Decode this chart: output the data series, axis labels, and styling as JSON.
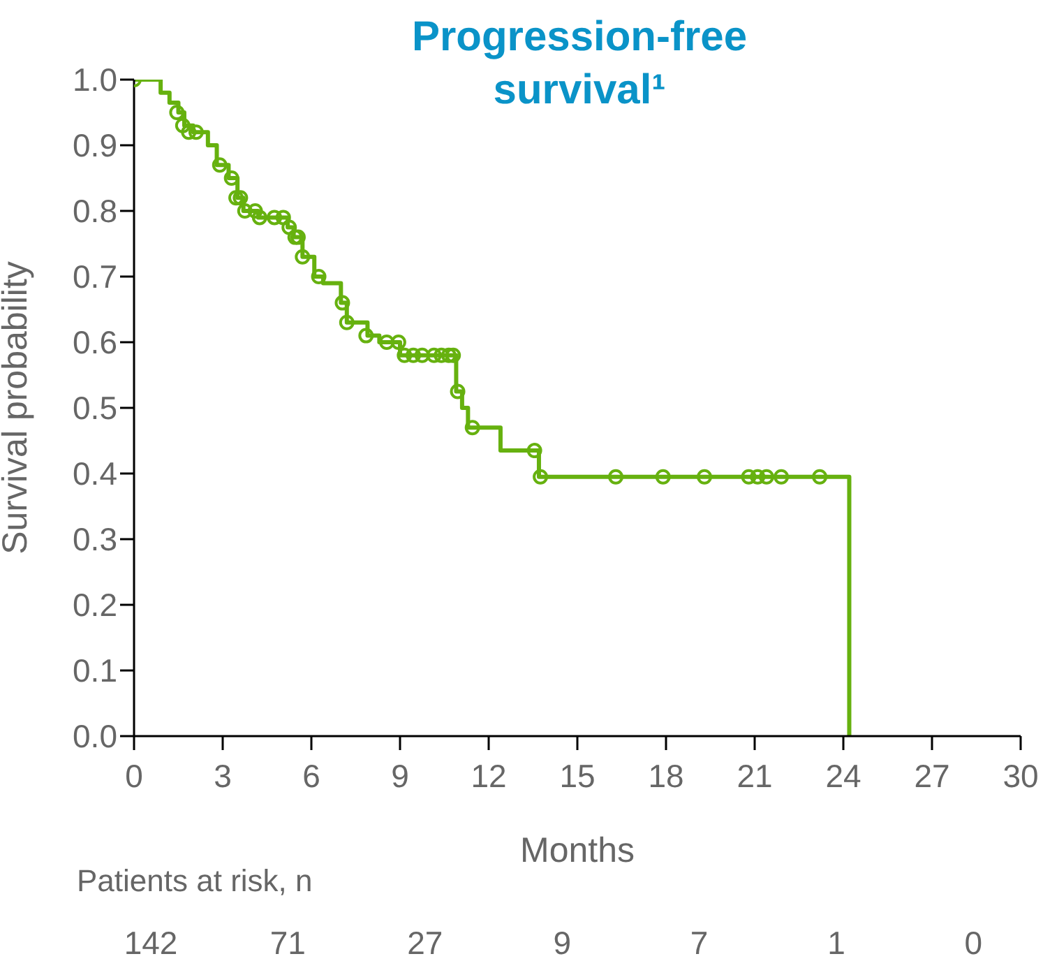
{
  "chart_data": {
    "type": "step",
    "title": "Progression-free survival¹",
    "xlabel": "Months",
    "ylabel": "Survival probability",
    "xlim": [
      0,
      30
    ],
    "xticks": [
      0,
      3,
      6,
      9,
      12,
      15,
      18,
      21,
      24,
      27,
      30
    ],
    "ylim": [
      0,
      1
    ],
    "yticks": [
      {
        "value": 0,
        "label": "0.0"
      },
      0.1,
      0.2,
      0.3,
      0.4,
      0.5,
      0.6,
      0.7,
      0.8,
      0.9,
      {
        "value": 1,
        "label": "1.0"
      }
    ],
    "legend": false,
    "grid": false,
    "series": [
      {
        "color": "#66b10f",
        "marker": "none",
        "x": [
          0,
          0.9,
          1.2,
          1.5,
          1.7,
          2.0,
          2.5,
          2.8,
          3.2,
          3.5,
          3.7,
          4.2,
          5.2,
          5.4,
          5.7,
          6.1,
          6.4,
          7.0,
          7.2,
          7.9,
          8.3,
          9.0,
          10.9,
          11.1,
          11.3,
          12.4,
          13.7,
          24.2
        ],
        "values": [
          1.0,
          0.98,
          0.965,
          0.95,
          0.93,
          0.92,
          0.9,
          0.87,
          0.85,
          0.82,
          0.8,
          0.79,
          0.775,
          0.76,
          0.73,
          0.7,
          0.69,
          0.66,
          0.63,
          0.61,
          0.6,
          0.58,
          0.525,
          0.5,
          0.47,
          0.435,
          0.395,
          0.0
        ]
      },
      {
        "type": "scatter",
        "color": "#66b10f",
        "marker": "circle",
        "x": [
          0,
          1.45,
          1.65,
          1.85,
          2.1,
          2.9,
          3.3,
          3.45,
          3.6,
          3.75,
          4.1,
          4.25,
          4.75,
          5.05,
          5.25,
          5.45,
          5.55,
          5.7,
          6.25,
          7.05,
          7.2,
          7.85,
          8.55,
          8.95,
          9.15,
          9.45,
          9.75,
          10.15,
          10.4,
          10.65,
          10.8,
          10.95,
          11.45,
          13.55,
          13.75,
          16.3,
          17.9,
          19.3,
          20.8,
          21.1,
          21.4,
          21.9,
          23.2
        ],
        "values": [
          1.0,
          0.95,
          0.93,
          0.92,
          0.92,
          0.87,
          0.85,
          0.82,
          0.82,
          0.8,
          0.8,
          0.79,
          0.79,
          0.79,
          0.775,
          0.76,
          0.76,
          0.73,
          0.7,
          0.66,
          0.63,
          0.61,
          0.6,
          0.6,
          0.58,
          0.58,
          0.58,
          0.58,
          0.58,
          0.58,
          0.58,
          0.525,
          0.47,
          0.435,
          0.395,
          0.395,
          0.395,
          0.395,
          0.395,
          0.395,
          0.395,
          0.395,
          0.395
        ]
      }
    ],
    "annotations": [
      "Patients at risk, n",
      "142",
      "71",
      "27",
      "9",
      "7",
      "1",
      "0"
    ]
  }
}
